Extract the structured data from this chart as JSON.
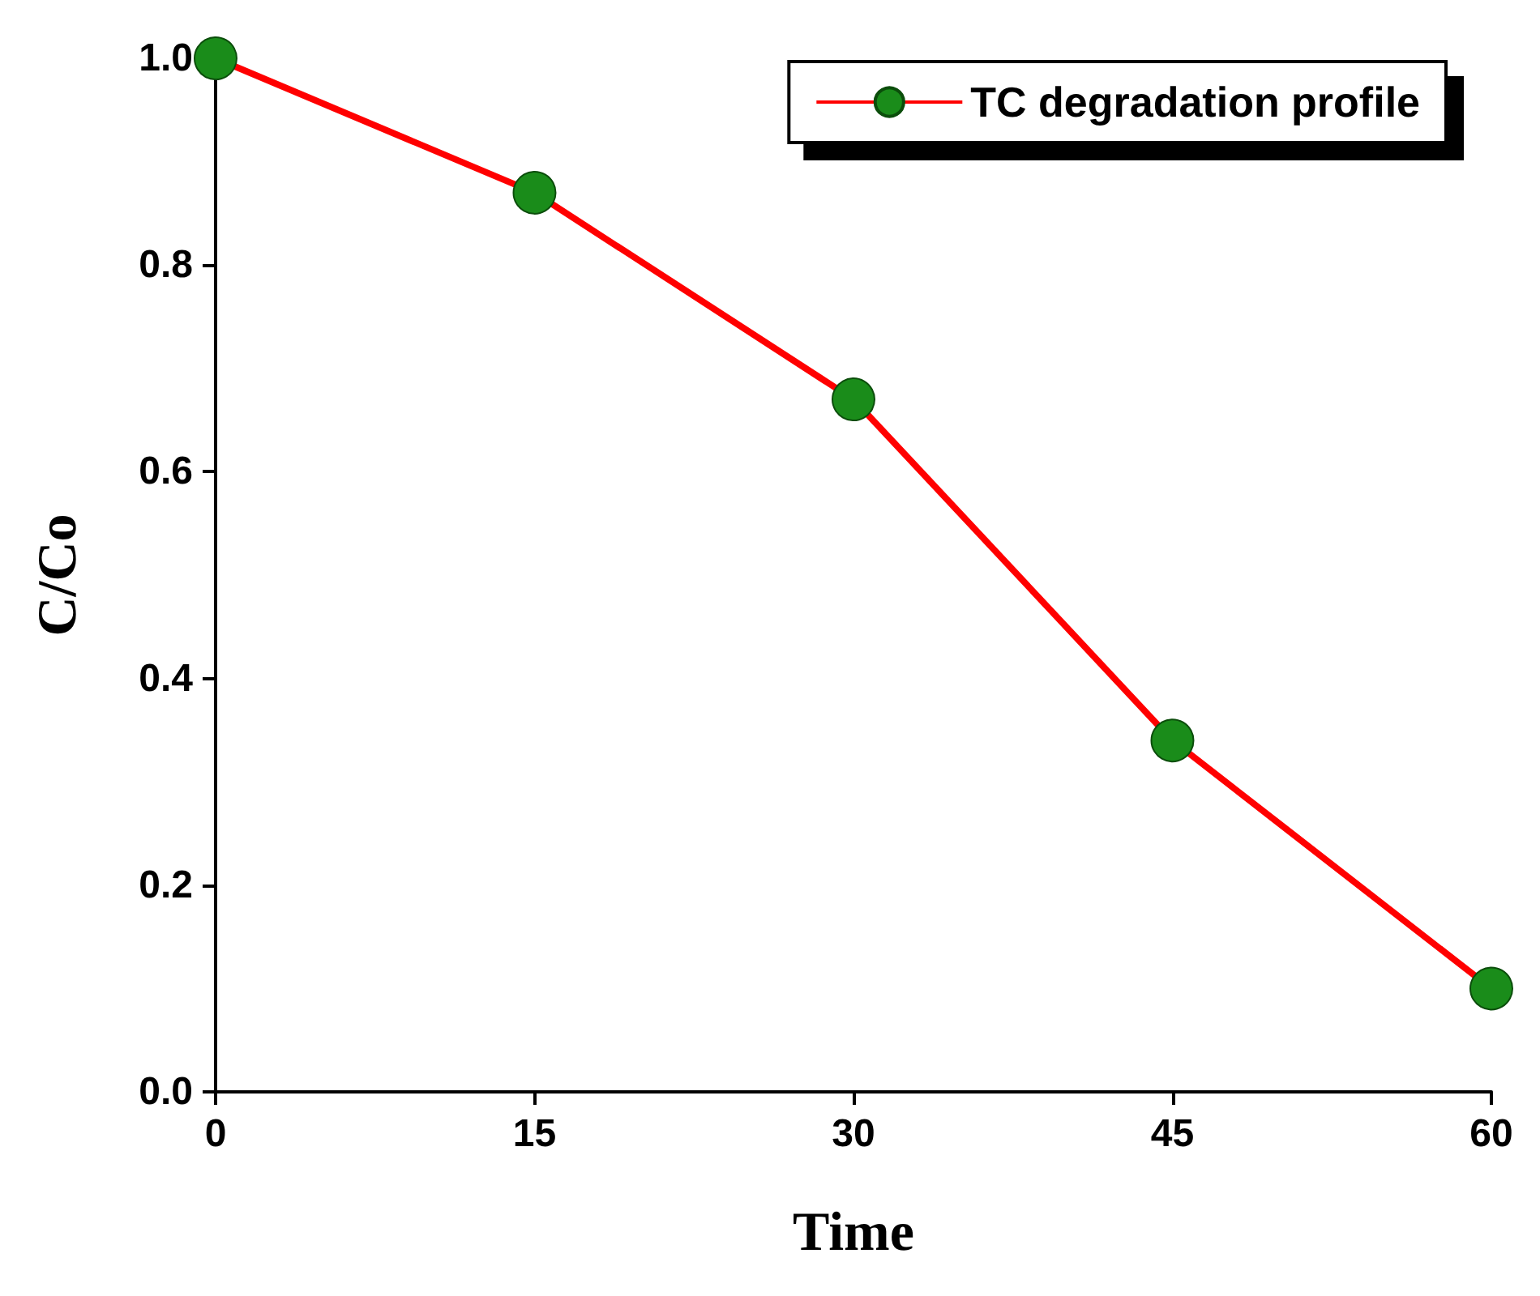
{
  "chart_data": {
    "type": "line",
    "xlabel": "Time",
    "ylabel": "C/Co",
    "x": [
      0,
      15,
      30,
      45,
      60
    ],
    "series": [
      {
        "name": "TC degradation profile",
        "color": "#ff0000",
        "colors": [
          "#1a8c1a",
          "#1a8c1a",
          "#1a8c1a",
          "#1a8c1a",
          "#1a8c1a"
        ],
        "values": [
          1.0,
          0.87,
          0.67,
          0.34,
          0.1
        ]
      }
    ],
    "xlim": [
      0,
      60
    ],
    "xticks": [
      0,
      15,
      30,
      45,
      60
    ],
    "ylim": [
      0,
      1.0
    ],
    "yticks": [
      {
        "value": 0,
        "label": "0.0"
      },
      {
        "value": 0.2,
        "label": "0.2"
      },
      {
        "value": 0.4,
        "label": "0.4"
      },
      {
        "value": 0.6,
        "label": "0.6"
      },
      {
        "value": 0.8,
        "label": "0.8"
      },
      {
        "value": 1.0,
        "label": "1.0"
      }
    ],
    "grid": false,
    "legend": "top right",
    "marker": "circle",
    "line_style": "solid"
  }
}
